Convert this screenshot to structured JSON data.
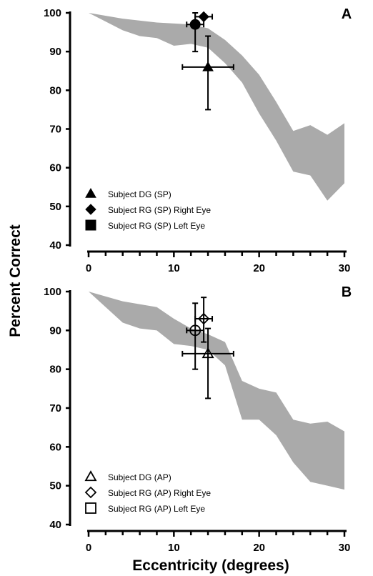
{
  "y_axis_title": "Percent Correct",
  "x_axis_title": "Eccentricity (degrees)",
  "chart_data": [
    {
      "type": "scatter",
      "panel": "A",
      "xlim": [
        0,
        30
      ],
      "ylim": [
        40,
        100
      ],
      "x_ticks": [
        0,
        10,
        20,
        30
      ],
      "y_ticks": [
        40,
        50,
        60,
        70,
        80,
        90,
        100
      ],
      "grid": false,
      "legend_position": "bottom-left",
      "band_color": "#aaaaaa",
      "band_upper": [
        [
          0,
          100
        ],
        [
          4,
          98.5
        ],
        [
          8,
          97.5
        ],
        [
          12,
          97
        ],
        [
          14,
          96
        ],
        [
          16,
          93
        ],
        [
          18,
          89
        ],
        [
          20,
          84
        ],
        [
          22,
          77
        ],
        [
          24,
          69.5
        ],
        [
          26,
          71
        ],
        [
          28,
          68.5
        ],
        [
          30,
          71.5
        ]
      ],
      "band_lower": [
        [
          0,
          100
        ],
        [
          4,
          95.5
        ],
        [
          6,
          94
        ],
        [
          8,
          93.5
        ],
        [
          10,
          91.5
        ],
        [
          12,
          92
        ],
        [
          14,
          91
        ],
        [
          16,
          87
        ],
        [
          18,
          82
        ],
        [
          20,
          74
        ],
        [
          22,
          67
        ],
        [
          24,
          59
        ],
        [
          26,
          58
        ],
        [
          28,
          51.5
        ],
        [
          30,
          56
        ]
      ],
      "points": [
        {
          "label": "Subject DG (SP)",
          "marker": "triangle",
          "filled": true,
          "x": 14.0,
          "y": 86.0,
          "x_err": [
            11.0,
            17.0
          ],
          "y_err": [
            75.0,
            94.0
          ]
        },
        {
          "label": "Subject RG (SP) Right Eye",
          "marker": "diamond",
          "filled": true,
          "x": 13.5,
          "y": 99.0,
          "x_err": [
            12.5,
            14.5
          ],
          "y_err": null
        },
        {
          "label": "Subject RG (SP) Left Eye",
          "marker": "square",
          "filled": true,
          "x": 12.5,
          "y": 97.0,
          "x_err": [
            11.5,
            13.5
          ],
          "y_err": [
            90.0,
            100.0
          ]
        }
      ],
      "legend": [
        {
          "label": "Subject DG (SP)",
          "marker": "triangle",
          "filled": true
        },
        {
          "label": "Subject RG (SP) Right Eye",
          "marker": "diamond",
          "filled": true
        },
        {
          "label": "Subject RG (SP) Left Eye",
          "marker": "square",
          "filled": true
        }
      ]
    },
    {
      "type": "scatter",
      "panel": "B",
      "xlim": [
        0,
        30
      ],
      "ylim": [
        40,
        100
      ],
      "x_ticks": [
        0,
        10,
        20,
        30
      ],
      "y_ticks": [
        40,
        50,
        60,
        70,
        80,
        90,
        100
      ],
      "grid": false,
      "legend_position": "bottom-left",
      "band_color": "#aaaaaa",
      "band_upper": [
        [
          0,
          100
        ],
        [
          4,
          97.5
        ],
        [
          8,
          96
        ],
        [
          10,
          93
        ],
        [
          12,
          90.5
        ],
        [
          14,
          89
        ],
        [
          16,
          87
        ],
        [
          18,
          77
        ],
        [
          20,
          75
        ],
        [
          22,
          74
        ],
        [
          24,
          67
        ],
        [
          26,
          66
        ],
        [
          28,
          66.5
        ],
        [
          30,
          64
        ]
      ],
      "band_lower": [
        [
          0,
          100
        ],
        [
          4,
          92
        ],
        [
          6,
          90.5
        ],
        [
          8,
          90
        ],
        [
          10,
          86.5
        ],
        [
          12,
          86
        ],
        [
          14,
          85
        ],
        [
          16,
          81
        ],
        [
          18,
          67
        ],
        [
          20,
          67
        ],
        [
          22,
          63
        ],
        [
          24,
          56
        ],
        [
          26,
          51
        ],
        [
          28,
          50
        ],
        [
          30,
          49
        ]
      ],
      "points": [
        {
          "label": "Subject DG (AP)",
          "marker": "triangle",
          "filled": false,
          "x": 14.0,
          "y": 84.0,
          "x_err": [
            11.0,
            17.0
          ],
          "y_err": [
            72.5,
            90.5
          ]
        },
        {
          "label": "Subject RG (AP) Right Eye",
          "marker": "diamond",
          "filled": false,
          "x": 13.5,
          "y": 93.0,
          "x_err": [
            12.5,
            14.5
          ],
          "y_err": [
            87.0,
            98.5
          ]
        },
        {
          "label": "Subject RG (AP) Left Eye",
          "marker": "square",
          "filled": false,
          "x": 12.5,
          "y": 90.0,
          "x_err": [
            11.5,
            13.5
          ],
          "y_err": [
            80.0,
            97.0
          ]
        }
      ],
      "legend": [
        {
          "label": "Subject DG (AP)",
          "marker": "triangle",
          "filled": false
        },
        {
          "label": "Subject RG (AP) Right Eye",
          "marker": "diamond",
          "filled": false
        },
        {
          "label": "Subject RG (AP) Left Eye",
          "marker": "square",
          "filled": false
        }
      ]
    }
  ]
}
